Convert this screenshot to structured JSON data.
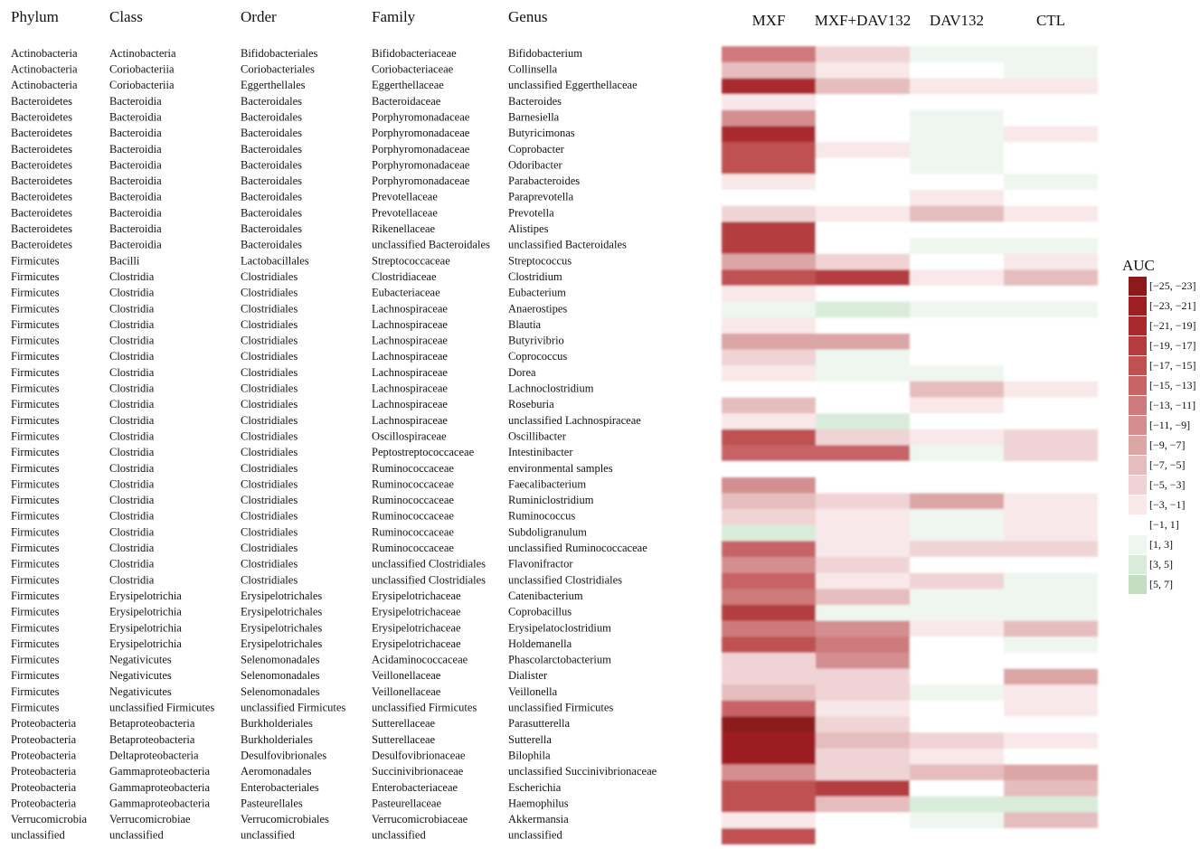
{
  "chart_data": {
    "type": "heatmap",
    "columns": [
      "Phylum",
      "Class",
      "Order",
      "Family",
      "Genus"
    ],
    "conditions": [
      "MXF",
      "MXF+DAV132",
      "DAV132",
      "CTL"
    ],
    "rows": [
      [
        "Actinobacteria",
        "Actinobacteria",
        "Bifidobacteriales",
        "Bifidobacteriaceae",
        "Bifidobacterium"
      ],
      [
        "Actinobacteria",
        "Coriobacteriia",
        "Coriobacteriales",
        "Coriobacteriaceae",
        "Collinsella"
      ],
      [
        "Actinobacteria",
        "Coriobacteriia",
        "Eggerthellales",
        "Eggerthellaceae",
        "unclassified Eggerthellaceae"
      ],
      [
        "Bacteroidetes",
        "Bacteroidia",
        "Bacteroidales",
        "Bacteroidaceae",
        "Bacteroides"
      ],
      [
        "Bacteroidetes",
        "Bacteroidia",
        "Bacteroidales",
        "Porphyromonadaceae",
        "Barnesiella"
      ],
      [
        "Bacteroidetes",
        "Bacteroidia",
        "Bacteroidales",
        "Porphyromonadaceae",
        "Butyricimonas"
      ],
      [
        "Bacteroidetes",
        "Bacteroidia",
        "Bacteroidales",
        "Porphyromonadaceae",
        "Coprobacter"
      ],
      [
        "Bacteroidetes",
        "Bacteroidia",
        "Bacteroidales",
        "Porphyromonadaceae",
        "Odoribacter"
      ],
      [
        "Bacteroidetes",
        "Bacteroidia",
        "Bacteroidales",
        "Porphyromonadaceae",
        "Parabacteroides"
      ],
      [
        "Bacteroidetes",
        "Bacteroidia",
        "Bacteroidales",
        "Prevotellaceae",
        "Paraprevotella"
      ],
      [
        "Bacteroidetes",
        "Bacteroidia",
        "Bacteroidales",
        "Prevotellaceae",
        "Prevotella"
      ],
      [
        "Bacteroidetes",
        "Bacteroidia",
        "Bacteroidales",
        "Rikenellaceae",
        "Alistipes"
      ],
      [
        "Bacteroidetes",
        "Bacteroidia",
        "Bacteroidales",
        "unclassified Bacteroidales",
        "unclassified Bacteroidales"
      ],
      [
        "Firmicutes",
        "Bacilli",
        "Lactobacillales",
        "Streptococcaceae",
        "Streptococcus"
      ],
      [
        "Firmicutes",
        "Clostridia",
        "Clostridiales",
        "Clostridiaceae",
        "Clostridium"
      ],
      [
        "Firmicutes",
        "Clostridia",
        "Clostridiales",
        "Eubacteriaceae",
        "Eubacterium"
      ],
      [
        "Firmicutes",
        "Clostridia",
        "Clostridiales",
        "Lachnospiraceae",
        "Anaerostipes"
      ],
      [
        "Firmicutes",
        "Clostridia",
        "Clostridiales",
        "Lachnospiraceae",
        "Blautia"
      ],
      [
        "Firmicutes",
        "Clostridia",
        "Clostridiales",
        "Lachnospiraceae",
        "Butyrivibrio"
      ],
      [
        "Firmicutes",
        "Clostridia",
        "Clostridiales",
        "Lachnospiraceae",
        "Coprococcus"
      ],
      [
        "Firmicutes",
        "Clostridia",
        "Clostridiales",
        "Lachnospiraceae",
        "Dorea"
      ],
      [
        "Firmicutes",
        "Clostridia",
        "Clostridiales",
        "Lachnospiraceae",
        "Lachnoclostridium"
      ],
      [
        "Firmicutes",
        "Clostridia",
        "Clostridiales",
        "Lachnospiraceae",
        "Roseburia"
      ],
      [
        "Firmicutes",
        "Clostridia",
        "Clostridiales",
        "Lachnospiraceae",
        "unclassified Lachnospiraceae"
      ],
      [
        "Firmicutes",
        "Clostridia",
        "Clostridiales",
        "Oscillospiraceae",
        "Oscillibacter"
      ],
      [
        "Firmicutes",
        "Clostridia",
        "Clostridiales",
        "Peptostreptococcaceae",
        "Intestinibacter"
      ],
      [
        "Firmicutes",
        "Clostridia",
        "Clostridiales",
        "Ruminococcaceae",
        "environmental samples"
      ],
      [
        "Firmicutes",
        "Clostridia",
        "Clostridiales",
        "Ruminococcaceae",
        "Faecalibacterium"
      ],
      [
        "Firmicutes",
        "Clostridia",
        "Clostridiales",
        "Ruminococcaceae",
        "Ruminiclostridium"
      ],
      [
        "Firmicutes",
        "Clostridia",
        "Clostridiales",
        "Ruminococcaceae",
        "Ruminococcus"
      ],
      [
        "Firmicutes",
        "Clostridia",
        "Clostridiales",
        "Ruminococcaceae",
        "Subdoligranulum"
      ],
      [
        "Firmicutes",
        "Clostridia",
        "Clostridiales",
        "Ruminococcaceae",
        "unclassified Ruminococcaceae"
      ],
      [
        "Firmicutes",
        "Clostridia",
        "Clostridiales",
        "unclassified Clostridiales",
        "Flavonifractor"
      ],
      [
        "Firmicutes",
        "Clostridia",
        "Clostridiales",
        "unclassified Clostridiales",
        "unclassified Clostridiales"
      ],
      [
        "Firmicutes",
        "Erysipelotrichia",
        "Erysipelotrichales",
        "Erysipelotrichaceae",
        "Catenibacterium"
      ],
      [
        "Firmicutes",
        "Erysipelotrichia",
        "Erysipelotrichales",
        "Erysipelotrichaceae",
        "Coprobacillus"
      ],
      [
        "Firmicutes",
        "Erysipelotrichia",
        "Erysipelotrichales",
        "Erysipelotrichaceae",
        "Erysipelatoclostridium"
      ],
      [
        "Firmicutes",
        "Erysipelotrichia",
        "Erysipelotrichales",
        "Erysipelotrichaceae",
        "Holdemanella"
      ],
      [
        "Firmicutes",
        "Negativicutes",
        "Selenomonadales",
        "Acidaminococcaceae",
        "Phascolarctobacterium"
      ],
      [
        "Firmicutes",
        "Negativicutes",
        "Selenomonadales",
        "Veillonellaceae",
        "Dialister"
      ],
      [
        "Firmicutes",
        "Negativicutes",
        "Selenomonadales",
        "Veillonellaceae",
        "Veillonella"
      ],
      [
        "Firmicutes",
        "unclassified Firmicutes",
        "unclassified Firmicutes",
        "unclassified Firmicutes",
        "unclassified Firmicutes"
      ],
      [
        "Proteobacteria",
        "Betaproteobacteria",
        "Burkholderiales",
        "Sutterellaceae",
        "Parasutterella"
      ],
      [
        "Proteobacteria",
        "Betaproteobacteria",
        "Burkholderiales",
        "Sutterellaceae",
        "Sutterella"
      ],
      [
        "Proteobacteria",
        "Deltaproteobacteria",
        "Desulfovibrionales",
        "Desulfovibrionaceae",
        "Bilophila"
      ],
      [
        "Proteobacteria",
        "Gammaproteobacteria",
        "Aeromonadales",
        "Succinivibrionaceae",
        "unclassified Succinivibrionaceae"
      ],
      [
        "Proteobacteria",
        "Gammaproteobacteria",
        "Enterobacteriales",
        "Enterobacteriaceae",
        "Escherichia"
      ],
      [
        "Proteobacteria",
        "Gammaproteobacteria",
        "Pasteurellales",
        "Pasteurellaceae",
        "Haemophilus"
      ],
      [
        "Verrucomicrobia",
        "Verrucomicrobiae",
        "Verrucomicrobiales",
        "Verrucomicrobiaceae",
        "Akkermansia"
      ],
      [
        "unclassified",
        "unclassified",
        "unclassified",
        "unclassified",
        "unclassified"
      ]
    ],
    "values": [
      [
        -12,
        -4,
        2,
        2
      ],
      [
        -5,
        -2,
        0,
        2
      ],
      [
        -20,
        -5,
        -2,
        -2
      ],
      [
        -2,
        0,
        0,
        0
      ],
      [
        -9,
        0,
        2,
        0
      ],
      [
        -19,
        0,
        2,
        -2
      ],
      [
        -15,
        -2,
        2,
        0
      ],
      [
        -15,
        0,
        2,
        0
      ],
      [
        -2,
        0,
        0,
        2
      ],
      [
        0,
        0,
        -2,
        0
      ],
      [
        -4,
        -2,
        -6,
        -2
      ],
      [
        -17,
        0,
        0,
        0
      ],
      [
        -17,
        0,
        2,
        2
      ],
      [
        -8,
        -4,
        0,
        -2
      ],
      [
        -16,
        -17,
        -2,
        -5
      ],
      [
        -2,
        0,
        0,
        0
      ],
      [
        2,
        4,
        2,
        2
      ],
      [
        -2,
        0,
        0,
        0
      ],
      [
        -8,
        -7,
        0,
        0
      ],
      [
        -4,
        2,
        0,
        0
      ],
      [
        -2,
        2,
        2,
        0
      ],
      [
        0,
        0,
        -5,
        -2
      ],
      [
        -6,
        0,
        -2,
        0
      ],
      [
        -2,
        4,
        0,
        0
      ],
      [
        -16,
        -3,
        -2,
        -4
      ],
      [
        -13,
        -14,
        3,
        -4
      ],
      [
        0,
        0,
        0,
        0
      ],
      [
        -9,
        0,
        0,
        0
      ],
      [
        -5,
        -4,
        -8,
        -2
      ],
      [
        -4,
        -2,
        2,
        -2
      ],
      [
        5,
        -2,
        2,
        -2
      ],
      [
        -14,
        -2,
        -4,
        -4
      ],
      [
        -9,
        -4,
        0,
        0
      ],
      [
        -14,
        -2,
        -4,
        2
      ],
      [
        -12,
        -6,
        2,
        2
      ],
      [
        -18,
        2,
        2,
        2
      ],
      [
        -12,
        -10,
        -2,
        -5
      ],
      [
        -15,
        -11,
        0,
        2
      ],
      [
        -3,
        -10,
        0,
        0
      ],
      [
        -3,
        -3,
        0,
        -7
      ],
      [
        -6,
        -3,
        2,
        -2
      ],
      [
        -13,
        -2,
        0,
        -2
      ],
      [
        -24,
        -4,
        0,
        0
      ],
      [
        -22,
        -6,
        -3,
        -2
      ],
      [
        -22,
        -4,
        -2,
        0
      ],
      [
        -9,
        -4,
        -6,
        -7
      ],
      [
        -15,
        -18,
        0,
        -5
      ],
      [
        -15,
        -6,
        4,
        4
      ],
      [
        -2,
        0,
        2,
        -5
      ],
      [
        -16,
        0,
        0,
        0
      ]
    ],
    "legend": {
      "title": "AUC",
      "bins": [
        {
          "lo": -25,
          "hi": -23,
          "label": "[−25, −23]",
          "color": "#8c1a1d"
        },
        {
          "lo": -23,
          "hi": -21,
          "label": "[−23, −21]",
          "color": "#9d1f23"
        },
        {
          "lo": -21,
          "hi": -19,
          "label": "[−21, −19]",
          "color": "#a9292d"
        },
        {
          "lo": -19,
          "hi": -17,
          "label": "[−19, −17]",
          "color": "#b43c3f"
        },
        {
          "lo": -17,
          "hi": -15,
          "label": "[−17, −15]",
          "color": "#bf5153"
        },
        {
          "lo": -15,
          "hi": -13,
          "label": "[−15, −13]",
          "color": "#c76466"
        },
        {
          "lo": -13,
          "hi": -11,
          "label": "[−13, −11]",
          "color": "#ce7a7c"
        },
        {
          "lo": -11,
          "hi": -9,
          "label": "[−11, −9]",
          "color": "#d48e90"
        },
        {
          "lo": -9,
          "hi": -7,
          "label": "[−9, −7]",
          "color": "#dca5a6"
        },
        {
          "lo": -7,
          "hi": -5,
          "label": "[−7, −5]",
          "color": "#e6bdbe"
        },
        {
          "lo": -5,
          "hi": -3,
          "label": "[−5, −3]",
          "color": "#f0d4d5"
        },
        {
          "lo": -3,
          "hi": -1,
          "label": "[−3, −1]",
          "color": "#f8e8e9"
        },
        {
          "lo": -1,
          "hi": 1,
          "label": "[−1, 1]",
          "color": "#ffffff"
        },
        {
          "lo": 1,
          "hi": 3,
          "label": "[1, 3]",
          "color": "#eef6ef"
        },
        {
          "lo": 3,
          "hi": 5,
          "label": "[3, 5]",
          "color": "#d9ecda"
        },
        {
          "lo": 5,
          "hi": 7,
          "label": "[5, 7]",
          "color": "#c2dfc4"
        }
      ]
    }
  }
}
